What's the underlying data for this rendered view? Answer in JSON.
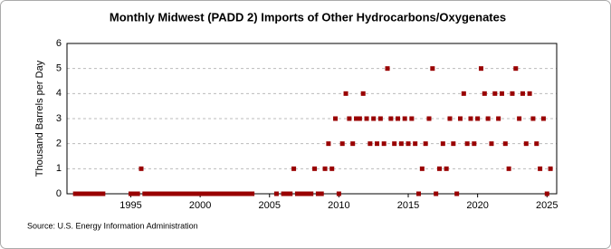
{
  "chart_data": {
    "type": "scatter",
    "title": "Monthly Midwest (PADD 2) Imports of Other Hydrocarbons/Oxygenates",
    "y_label": "Thousand Barrels per Day",
    "source": "Source: U.S. Energy Information Administration",
    "color": "#990000",
    "grid": true,
    "xlim": [
      1990.4,
      2025.7
    ],
    "ylim": [
      0,
      6
    ],
    "xticks": [
      1995,
      2000,
      2005,
      2010,
      2015,
      2020,
      2025
    ],
    "yticks": [
      0,
      1,
      2,
      3,
      4,
      5,
      6
    ],
    "x": [
      1991.0,
      1991.25,
      1991.5,
      1991.75,
      1992.0,
      1992.25,
      1992.5,
      1992.75,
      1993.0,
      1995.0,
      1995.25,
      1995.5,
      1995.75,
      1996.0,
      1996.25,
      1996.5,
      1996.75,
      1997.0,
      1997.25,
      1997.5,
      1997.75,
      1998.0,
      1998.25,
      1998.5,
      1998.75,
      1999.0,
      1999.25,
      1999.5,
      1999.75,
      2000.0,
      2000.25,
      2000.5,
      2000.75,
      2001.0,
      2001.25,
      2001.5,
      2001.75,
      2002.0,
      2002.25,
      2002.5,
      2002.75,
      2003.0,
      2003.25,
      2003.5,
      2003.75,
      2005.5,
      2006.0,
      2006.25,
      2006.5,
      2006.75,
      2007.0,
      2007.25,
      2007.5,
      2007.75,
      2008.0,
      2008.25,
      2008.5,
      2008.75,
      2009.0,
      2009.25,
      2009.5,
      2009.75,
      2010.0,
      2010.25,
      2010.5,
      2010.75,
      2011.0,
      2011.25,
      2011.5,
      2011.75,
      2012.0,
      2012.25,
      2012.5,
      2012.75,
      2013.0,
      2013.25,
      2013.5,
      2013.75,
      2014.0,
      2014.25,
      2014.5,
      2014.75,
      2015.0,
      2015.25,
      2015.5,
      2015.75,
      2016.0,
      2016.25,
      2016.5,
      2016.75,
      2017.0,
      2017.25,
      2017.5,
      2017.75,
      2018.0,
      2018.25,
      2018.5,
      2018.75,
      2019.0,
      2019.25,
      2019.5,
      2019.75,
      2020.0,
      2020.25,
      2020.5,
      2020.75,
      2021.0,
      2021.25,
      2021.5,
      2021.75,
      2022.0,
      2022.25,
      2022.5,
      2022.75,
      2023.0,
      2023.25,
      2023.5,
      2023.75,
      2024.0,
      2024.25,
      2024.5,
      2024.75,
      2025.0,
      2025.25
    ],
    "values": [
      0,
      0,
      0,
      0,
      0,
      0,
      0,
      0,
      0,
      0,
      0,
      0,
      1,
      0,
      0,
      0,
      0,
      0,
      0,
      0,
      0,
      0,
      0,
      0,
      0,
      0,
      0,
      0,
      0,
      0,
      0,
      0,
      0,
      0,
      0,
      0,
      0,
      0,
      0,
      0,
      0,
      0,
      0,
      0,
      0,
      0,
      0,
      0,
      0,
      1,
      0,
      0,
      0,
      0,
      0,
      1,
      0,
      0,
      1,
      2,
      1,
      3,
      0,
      2,
      4,
      3,
      2,
      3,
      3,
      4,
      3,
      2,
      3,
      2,
      3,
      2,
      5,
      3,
      2,
      3,
      2,
      3,
      2,
      3,
      2,
      0,
      1,
      2,
      3,
      5,
      0,
      1,
      2,
      1,
      3,
      2,
      0,
      3,
      4,
      2,
      3,
      2,
      3,
      5,
      4,
      3,
      2,
      4,
      3,
      4,
      2,
      1,
      4,
      5,
      3,
      4,
      2,
      4,
      3,
      2,
      1,
      3,
      0,
      1
    ]
  }
}
